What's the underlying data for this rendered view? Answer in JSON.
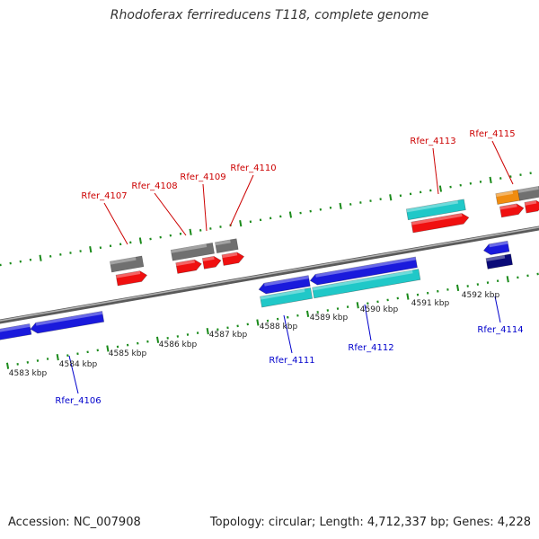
{
  "title": "Rhodoferax ferrireducens T118, complete genome",
  "footer": {
    "accession": "Accession: NC_007908",
    "summary": "Topology: circular; Length: 4,712,337 bp; Genes: 4,228"
  },
  "colors": {
    "backbone": "#8a8a8a",
    "tick": "#1a8a1a",
    "forward_label": "#cc0000",
    "reverse_label": "#0000cc",
    "cds_blue": "#1a1adc",
    "cds_cyan": "#20c8c8",
    "cds_red": "#f01010",
    "cds_gray": "#707070",
    "cds_orange": "#f08c10",
    "cds_navy": "#0a0a78"
  },
  "scale_labels": [
    "4583 kbp",
    "4584 kbp",
    "4585 kbp",
    "4586 kbp",
    "4587 kbp",
    "4588 kbp",
    "4589 kbp",
    "4590 kbp",
    "4591 kbp",
    "4592 kbp"
  ],
  "forward_loci": [
    "Rfer_4107",
    "Rfer_4108",
    "Rfer_4109",
    "Rfer_4110",
    "Rfer_4113",
    "Rfer_4115"
  ],
  "reverse_loci": [
    "Rfer_4106",
    "Rfer_4111",
    "Rfer_4112",
    "Rfer_4114"
  ]
}
